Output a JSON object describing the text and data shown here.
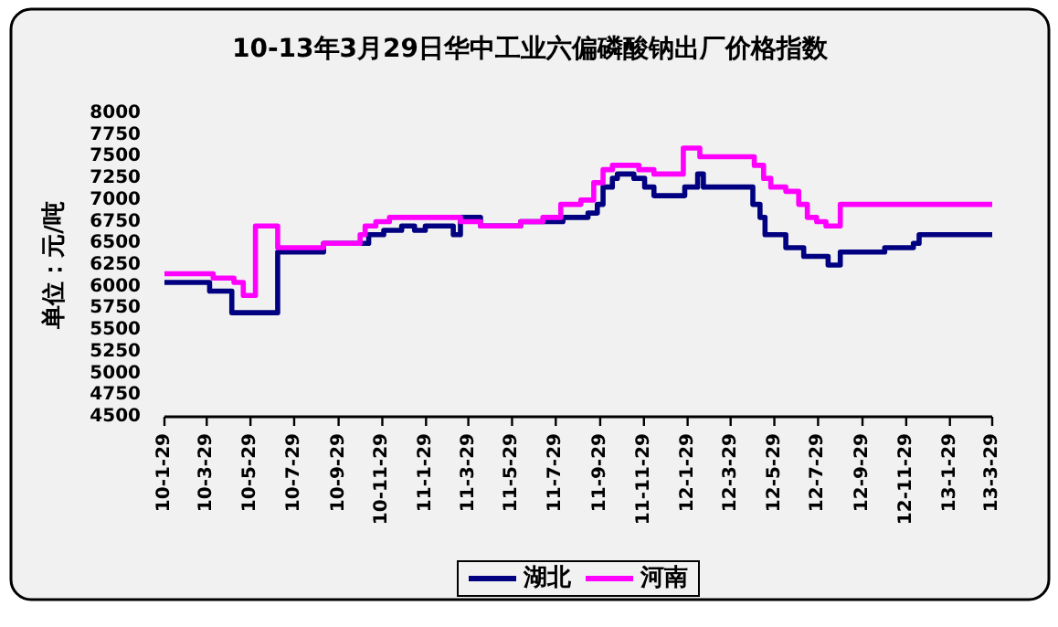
{
  "chart_data": {
    "type": "step",
    "title": "10-13年3月29日华中工业六偏磷酸钠出厂价格指数",
    "ylabel": "单位：元/吨",
    "xlim": [
      "2010-01-29",
      "2013-03-29"
    ],
    "xticks": [
      {
        "value": "2010-01-29",
        "label": "10-1-29"
      },
      {
        "value": "2010-03-29",
        "label": "10-3-29"
      },
      {
        "value": "2010-05-29",
        "label": "10-5-29"
      },
      {
        "value": "2010-07-29",
        "label": "10-7-29"
      },
      {
        "value": "2010-09-29",
        "label": "10-9-29"
      },
      {
        "value": "2010-11-29",
        "label": "10-11-29"
      },
      {
        "value": "2011-01-29",
        "label": "11-1-29"
      },
      {
        "value": "2011-03-29",
        "label": "11-3-29"
      },
      {
        "value": "2011-05-29",
        "label": "11-5-29"
      },
      {
        "value": "2011-07-29",
        "label": "11-7-29"
      },
      {
        "value": "2011-09-29",
        "label": "11-9-29"
      },
      {
        "value": "2011-11-29",
        "label": "11-11-29"
      },
      {
        "value": "2012-01-29",
        "label": "12-1-29"
      },
      {
        "value": "2012-03-29",
        "label": "12-3-29"
      },
      {
        "value": "2012-05-29",
        "label": "12-5-29"
      },
      {
        "value": "2012-07-29",
        "label": "12-7-29"
      },
      {
        "value": "2012-09-29",
        "label": "12-9-29"
      },
      {
        "value": "2012-11-29",
        "label": "12-11-29"
      },
      {
        "value": "2013-01-29",
        "label": "13-1-29"
      },
      {
        "value": "2013-03-29",
        "label": "13-3-29"
      }
    ],
    "ylim": [
      4500,
      8000
    ],
    "yticks": [
      4500,
      4750,
      5000,
      5250,
      5500,
      5750,
      6000,
      6250,
      6500,
      6750,
      7000,
      7250,
      7500,
      7750,
      8000
    ],
    "legend": "bottom",
    "series": [
      {
        "name": "湖北",
        "color": "#000080",
        "x": [
          "2010-01-29",
          "2010-04-02",
          "2010-05-03",
          "2010-07-06",
          "2010-09-08",
          "2010-11-10",
          "2010-12-01",
          "2010-12-26",
          "2011-01-13",
          "2011-01-28",
          "2011-03-08",
          "2011-03-18",
          "2011-04-15",
          "2011-06-10",
          "2011-08-08",
          "2011-09-12",
          "2011-09-25",
          "2011-10-03",
          "2011-10-16",
          "2011-10-23",
          "2011-11-15",
          "2011-11-30",
          "2011-12-13",
          "2012-01-25",
          "2012-02-12",
          "2012-02-20",
          "2012-04-29",
          "2012-05-09",
          "2012-05-16",
          "2012-06-14",
          "2012-07-09",
          "2012-08-12",
          "2012-08-29",
          "2012-10-30",
          "2012-12-09",
          "2012-12-17",
          "2013-03-29"
        ],
        "values": [
          6050,
          5950,
          5700,
          6400,
          6500,
          6600,
          6650,
          6700,
          6650,
          6700,
          6600,
          6800,
          6700,
          6750,
          6800,
          6850,
          6950,
          7150,
          7250,
          7300,
          7250,
          7150,
          7050,
          7150,
          7300,
          7150,
          6950,
          6800,
          6600,
          6450,
          6350,
          6250,
          6400,
          6450,
          6500,
          6600,
          6600
        ]
      },
      {
        "name": "河南",
        "color": "#ff00ff",
        "x": [
          "2010-01-29",
          "2010-04-07",
          "2010-05-06",
          "2010-05-19",
          "2010-06-05",
          "2010-07-06",
          "2010-09-08",
          "2010-10-29",
          "2010-11-05",
          "2010-11-20",
          "2010-12-09",
          "2011-03-18",
          "2011-04-15",
          "2011-06-10",
          "2011-07-11",
          "2011-08-05",
          "2011-09-02",
          "2011-09-20",
          "2011-10-03",
          "2011-10-16",
          "2011-11-22",
          "2011-12-13",
          "2012-01-23",
          "2012-02-15",
          "2012-05-01",
          "2012-05-14",
          "2012-05-24",
          "2012-06-14",
          "2012-07-02",
          "2012-07-14",
          "2012-07-27",
          "2012-08-09",
          "2012-08-29",
          "2013-03-29"
        ],
        "values": [
          6150,
          6100,
          6050,
          5900,
          6700,
          6450,
          6500,
          6600,
          6700,
          6750,
          6800,
          6750,
          6700,
          6750,
          6800,
          6950,
          7000,
          7200,
          7350,
          7400,
          7350,
          7300,
          7600,
          7500,
          7400,
          7250,
          7150,
          7100,
          6950,
          6800,
          6750,
          6700,
          6950,
          6950
        ]
      }
    ]
  }
}
